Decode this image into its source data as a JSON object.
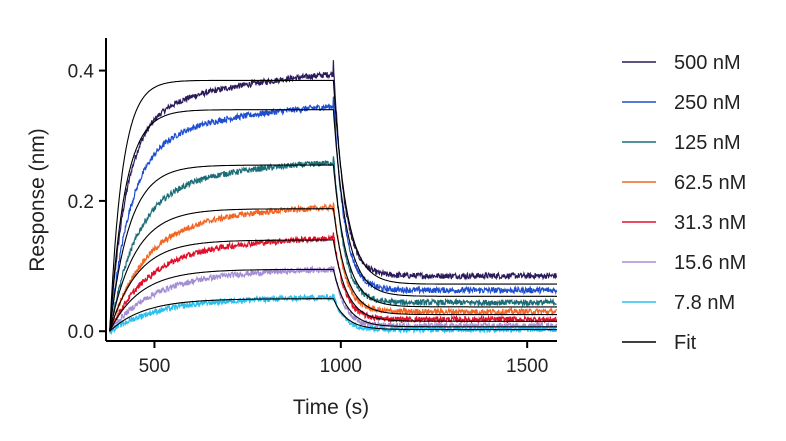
{
  "chart_data": {
    "type": "line",
    "title": "",
    "xlabel": "Time (s)",
    "ylabel": "Response (nm)",
    "xlim": [
      370,
      1580
    ],
    "ylim": [
      -0.015,
      0.45
    ],
    "xticks": [
      500,
      1000,
      1500
    ],
    "xtick_labels": [
      "500",
      "1000",
      "1500"
    ],
    "yticks": [
      0.0,
      0.2,
      0.4
    ],
    "ytick_labels": [
      "0.0",
      "0.2",
      "0.4"
    ],
    "grid": false,
    "legend_position": "right",
    "association_start": 380,
    "dissociation_start": 980,
    "end_time": 1580,
    "series": [
      {
        "name": "500 nM",
        "color": "#2b1a5a",
        "plateau": 0.415,
        "kon_rate": 0.022,
        "fast_drop": 0.33,
        "residual": 0.085,
        "slow_rate": 0.004,
        "fit_plateau": 0.385
      },
      {
        "name": "250 nM",
        "color": "#1f4fd1",
        "plateau": 0.363,
        "kon_rate": 0.018,
        "fast_drop": 0.3,
        "residual": 0.063,
        "slow_rate": 0.004,
        "fit_plateau": 0.34
      },
      {
        "name": "125 nM",
        "color": "#1b6e78",
        "plateau": 0.272,
        "kon_rate": 0.014,
        "fast_drop": 0.228,
        "residual": 0.044,
        "slow_rate": 0.004,
        "fit_plateau": 0.255
      },
      {
        "name": "62.5 nM",
        "color": "#f26522",
        "plateau": 0.2,
        "kon_rate": 0.011,
        "fast_drop": 0.17,
        "residual": 0.03,
        "slow_rate": 0.004,
        "fit_plateau": 0.188
      },
      {
        "name": "31.3 nM",
        "color": "#e0102a",
        "plateau": 0.15,
        "kon_rate": 0.01,
        "fast_drop": 0.132,
        "residual": 0.018,
        "slow_rate": 0.004,
        "fit_plateau": 0.14
      },
      {
        "name": "15.6 nM",
        "color": "#a58fd4",
        "plateau": 0.1,
        "kon_rate": 0.009,
        "fast_drop": 0.092,
        "residual": 0.008,
        "slow_rate": 0.004,
        "fit_plateau": 0.095
      },
      {
        "name": "7.8 nM",
        "color": "#2bc0ee",
        "plateau": 0.055,
        "kon_rate": 0.008,
        "fast_drop": 0.052,
        "residual": 0.003,
        "slow_rate": 0.004,
        "fit_plateau": 0.05
      },
      {
        "name": "Fit",
        "color": "#000000",
        "is_fit": true
      }
    ]
  }
}
